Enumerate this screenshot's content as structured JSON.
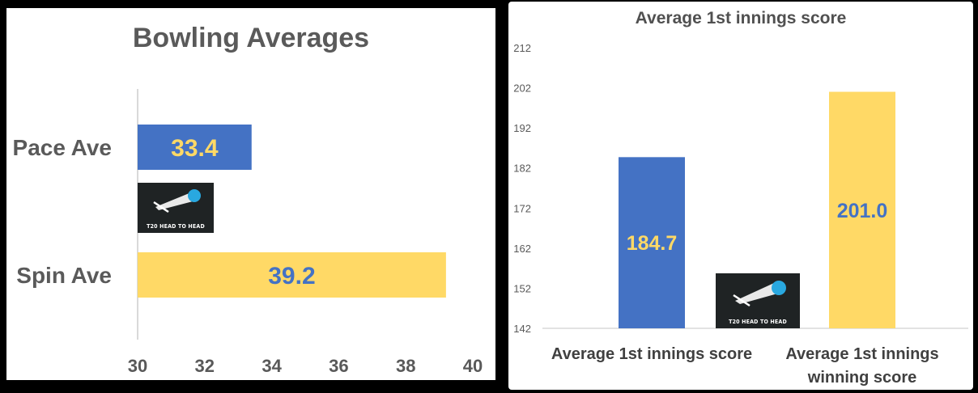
{
  "chart_data": [
    {
      "type": "bar",
      "orientation": "horizontal",
      "title": "Bowling Averages",
      "categories": [
        "Pace Ave",
        "Spin Ave"
      ],
      "values": [
        33.4,
        39.2
      ],
      "value_labels": [
        "33.4",
        "39.2"
      ],
      "bar_colors": [
        "#4472c4",
        "#ffd966"
      ],
      "label_colors": [
        "#ffd966",
        "#4472c4"
      ],
      "xlim": [
        30,
        40
      ],
      "xticks": [
        "30",
        "32",
        "34",
        "36",
        "38",
        "40"
      ],
      "grid": false,
      "legend": "none"
    },
    {
      "type": "bar",
      "title": "Average 1st innings score",
      "categories": [
        "Average 1st innings score",
        "Average 1st innings winning score"
      ],
      "category_lines": [
        [
          "Average 1st innings score"
        ],
        [
          "Average 1st innings",
          "winning score"
        ]
      ],
      "values": [
        184.7,
        201.0
      ],
      "value_labels": [
        "184.7",
        "201.0"
      ],
      "bar_colors": [
        "#4472c4",
        "#ffd966"
      ],
      "label_colors": [
        "#ffd966",
        "#4472c4"
      ],
      "ylim": [
        142,
        212
      ],
      "yticks": [
        "142",
        "152",
        "162",
        "172",
        "182",
        "192",
        "202",
        "212"
      ],
      "grid": false,
      "legend": "none"
    }
  ],
  "watermark": {
    "text": "T20 HEAD TO HEAD",
    "icon": "cricket-ball-trail-icon",
    "ball_color": "#29a8e0"
  }
}
